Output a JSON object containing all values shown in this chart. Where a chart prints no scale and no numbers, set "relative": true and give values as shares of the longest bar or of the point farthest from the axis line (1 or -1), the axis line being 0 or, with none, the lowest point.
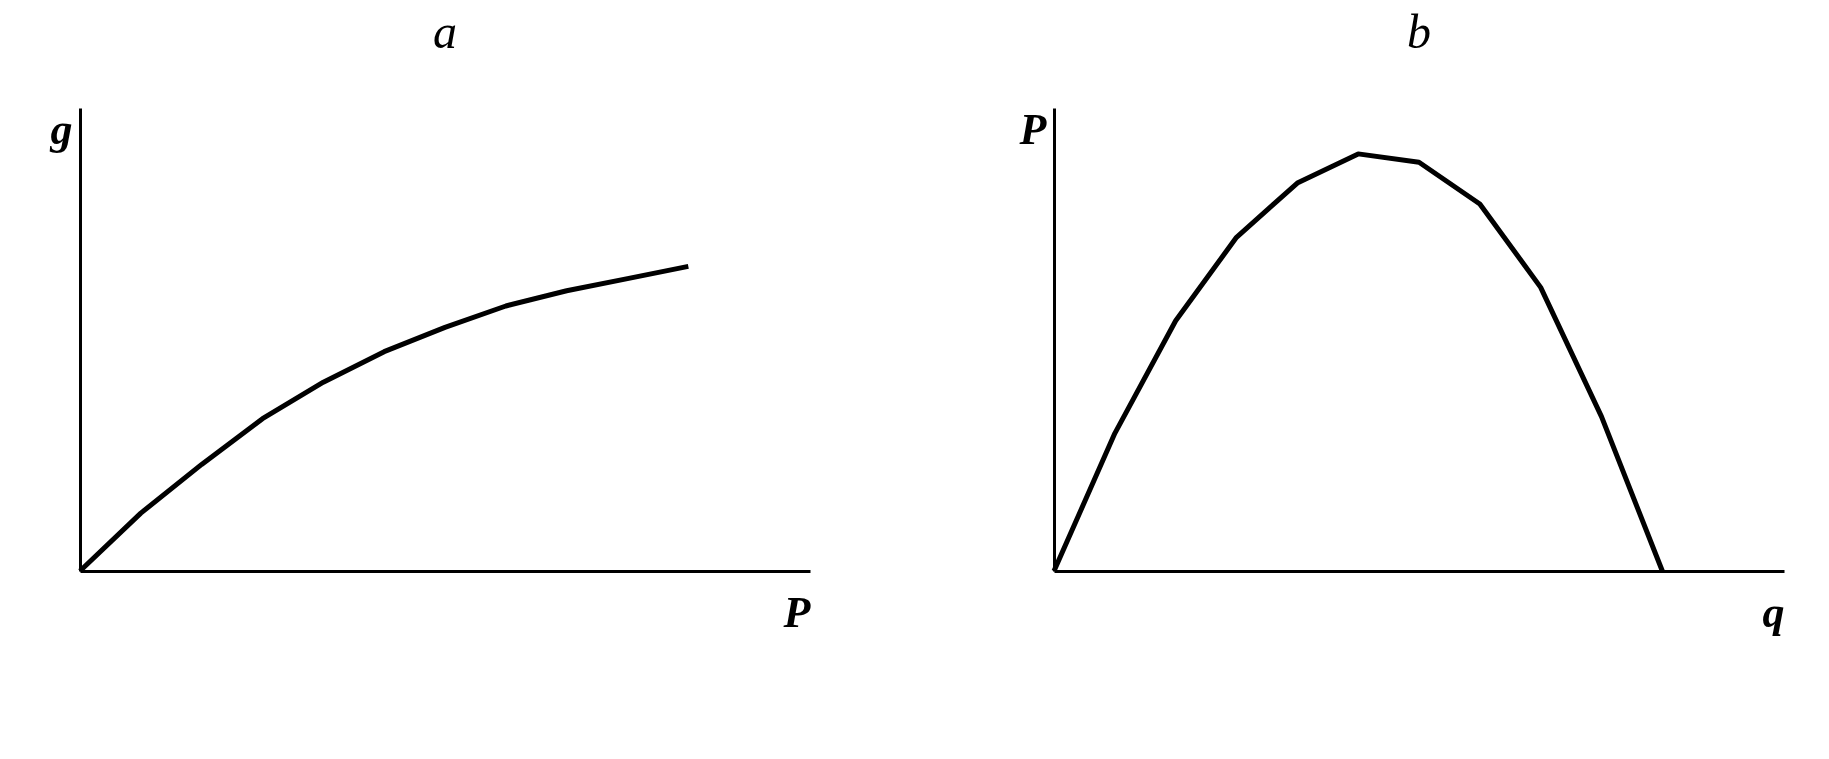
{
  "chart_data": [
    {
      "type": "line",
      "title": "a",
      "xlabel": "P",
      "ylabel": "g",
      "relative": true,
      "tick_labels": false,
      "categories": [
        null,
        null,
        null,
        null,
        null,
        null,
        null,
        null,
        null,
        null,
        null
      ],
      "series": [
        {
          "color": "#000000",
          "values": [
            0,
            0.19,
            0.35,
            0.5,
            0.62,
            0.72,
            0.8,
            0.87,
            0.92,
            0.96,
            1
          ]
        }
      ]
    },
    {
      "type": "line",
      "title": "b",
      "xlabel": "q",
      "ylabel": "P",
      "relative": true,
      "tick_labels": false,
      "categories": [
        null,
        null,
        null,
        null,
        null,
        null,
        null,
        null,
        null,
        null,
        null
      ],
      "series": [
        {
          "color": "#000000",
          "values": [
            0,
            0.33,
            0.6,
            0.8,
            0.93,
            1,
            0.98,
            0.88,
            0.68,
            0.37,
            0
          ]
        }
      ]
    }
  ]
}
